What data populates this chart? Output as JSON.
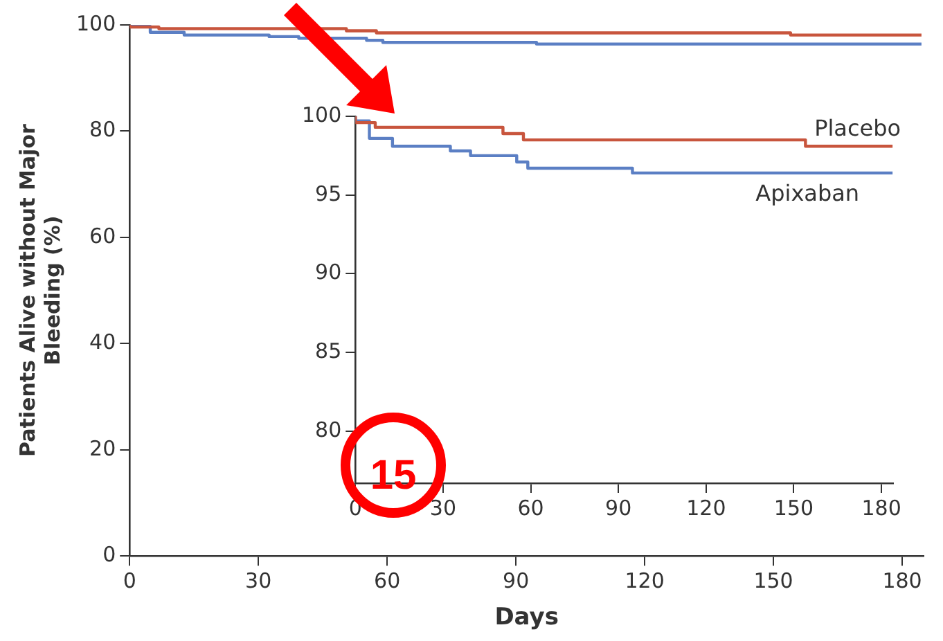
{
  "chart_data": [
    {
      "type": "step",
      "xlabel": "Days",
      "ylabel": "Patients Alive without Major Bleeding (%)",
      "xlim": [
        0,
        185
      ],
      "xticks": [
        0,
        30,
        60,
        90,
        120,
        150,
        180
      ],
      "ylim": [
        0,
        100
      ],
      "yticks": [
        0,
        20,
        40,
        60,
        80,
        100
      ],
      "grid": false,
      "legend": false,
      "series": [
        {
          "color": "#c8553d",
          "x": [
            0,
            6.8,
            50.5,
            57.5,
            154,
            156.7,
            184.5
          ],
          "values": [
            100,
            99.6,
            99.3,
            98.9,
            98.5,
            98.1,
            98.1
          ]
        },
        {
          "color": "#5b7fc4",
          "x": [
            0,
            4.8,
            12.7,
            32.5,
            39.4,
            55.2,
            59,
            94.8,
            109.8,
            184.5
          ],
          "values": [
            100,
            99.7,
            98.6,
            98.1,
            97.8,
            97.5,
            97.1,
            96.7,
            96.4,
            96.4
          ]
        }
      ]
    },
    {
      "type": "step",
      "xlim": [
        0,
        184
      ],
      "xticks": [
        0,
        30,
        60,
        90,
        120,
        150,
        180
      ],
      "ylim": [
        76.7,
        100
      ],
      "yticks": [
        80,
        85,
        90,
        95,
        100
      ],
      "grid": false,
      "legend": false,
      "annotations": [
        "15"
      ],
      "series": [
        {
          "name": "Placebo",
          "color": "#c8553d",
          "x": [
            0,
            6.8,
            50.5,
            57.5,
            154,
            156.7,
            183.8
          ],
          "values": [
            100,
            99.6,
            99.3,
            98.9,
            98.5,
            98.1,
            98.1
          ]
        },
        {
          "name": "Apixaban",
          "color": "#5b7fc4",
          "x": [
            0,
            4.8,
            12.7,
            32.5,
            39.4,
            55.2,
            59,
            94.8,
            109.8,
            183.8
          ],
          "values": [
            100,
            99.7,
            98.6,
            98.1,
            97.8,
            97.5,
            97.1,
            96.7,
            96.4,
            96.4
          ]
        }
      ]
    }
  ]
}
